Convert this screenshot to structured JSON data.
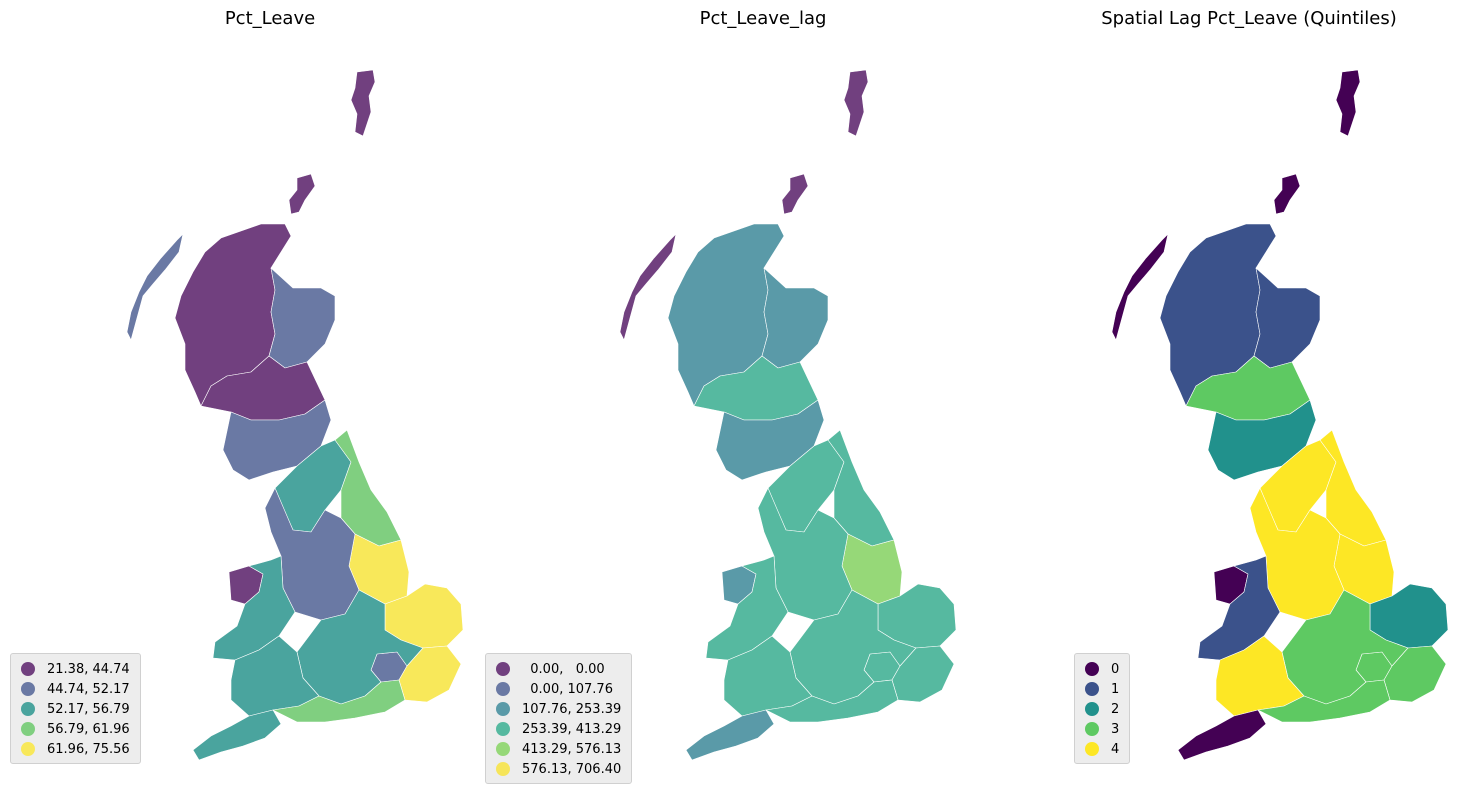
{
  "maps": [
    {
      "title": "Pct_Leave",
      "legend": [
        {
          "label": "21.38, 44.74",
          "color": "#71407f"
        },
        {
          "label": "44.74, 52.17",
          "color": "#6a79a4"
        },
        {
          "label": "52.17, 56.79",
          "color": "#4aa49e"
        },
        {
          "label": "56.79, 61.96",
          "color": "#80cf80"
        },
        {
          "label": "61.96, 75.56",
          "color": "#f8e85a"
        }
      ],
      "region_classes": {
        "shetland": 0,
        "orkney": 0,
        "hebrides": 1,
        "highlands": 0,
        "northeast": 1,
        "central_scotland": 0,
        "borders": 1,
        "north_england": 2,
        "east_coast": 3,
        "lincolnshire": 4,
        "midlands": 1,
        "wales": 2,
        "west_wales": 0,
        "east_anglia": 4,
        "southeast": 2,
        "london": 1,
        "southwest": 2,
        "cornwall": 2,
        "dorset_coast": 3,
        "kent": 4
      }
    },
    {
      "title": "Pct_Leave_lag",
      "legend": [
        {
          "label": "  0.00,   0.00",
          "color": "#71407f"
        },
        {
          "label": "  0.00, 107.76",
          "color": "#6a79a4"
        },
        {
          "label": "107.76, 253.39",
          "color": "#5a9aa8"
        },
        {
          "label": "253.39, 413.29",
          "color": "#56b9a0"
        },
        {
          "label": "413.29, 576.13",
          "color": "#96d878"
        },
        {
          "label": "576.13, 706.40",
          "color": "#f6e55a"
        }
      ],
      "region_classes": {
        "shetland": 0,
        "orkney": 0,
        "hebrides": 0,
        "highlands": 2,
        "northeast": 2,
        "central_scotland": 3,
        "borders": 2,
        "north_england": 3,
        "east_coast": 3,
        "lincolnshire": 4,
        "midlands": 3,
        "wales": 3,
        "west_wales": 2,
        "east_anglia": 3,
        "southeast": 3,
        "london": 3,
        "southwest": 3,
        "cornwall": 2,
        "dorset_coast": 3,
        "kent": 3
      }
    },
    {
      "title": "Spatial Lag Pct_Leave (Quintiles)",
      "legend": [
        {
          "label": "0",
          "color": "#440154"
        },
        {
          "label": "1",
          "color": "#3b528b"
        },
        {
          "label": "2",
          "color": "#21918c"
        },
        {
          "label": "3",
          "color": "#5ec962"
        },
        {
          "label": "4",
          "color": "#fde725"
        }
      ],
      "region_classes": {
        "shetland": 0,
        "orkney": 0,
        "hebrides": 0,
        "highlands": 1,
        "northeast": 1,
        "central_scotland": 3,
        "borders": 2,
        "north_england": 4,
        "east_coast": 4,
        "lincolnshire": 4,
        "midlands": 4,
        "wales": 1,
        "west_wales": 0,
        "east_anglia": 2,
        "southeast": 3,
        "london": 3,
        "southwest": 4,
        "cornwall": 0,
        "dorset_coast": 3,
        "kent": 3
      }
    }
  ]
}
